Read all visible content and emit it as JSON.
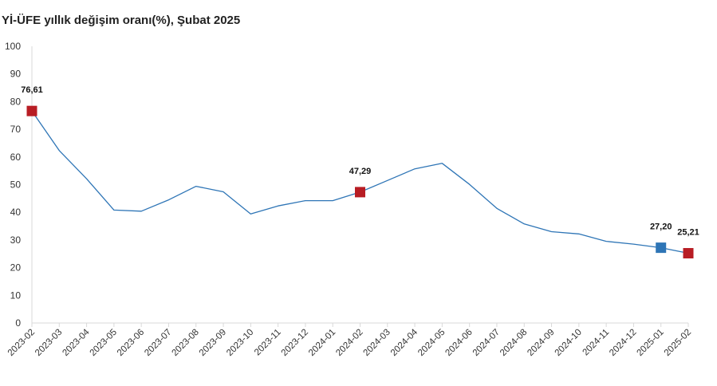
{
  "chart_data": {
    "type": "line",
    "title": "Yİ-ÜFE yıllık değişim oranı(%), Şubat 2025",
    "xlabel": "",
    "ylabel": "",
    "ylim": [
      0,
      100
    ],
    "yticks": [
      "0",
      "10",
      "20",
      "30",
      "40",
      "50",
      "60",
      "70",
      "80",
      "90",
      "100"
    ],
    "grid": false,
    "legend": "none",
    "categories": [
      "2023-02",
      "2023-03",
      "2023-04",
      "2023-05",
      "2023-06",
      "2023-07",
      "2023-08",
      "2023-09",
      "2023-10",
      "2023-11",
      "2023-12",
      "2024-01",
      "2024-02",
      "2024-03",
      "2024-04",
      "2024-05",
      "2024-06",
      "2024-07",
      "2024-08",
      "2024-09",
      "2024-10",
      "2024-11",
      "2024-12",
      "2025-01",
      "2025-02"
    ],
    "series": [
      {
        "values": [
          76.61,
          62.3,
          52.1,
          40.8,
          40.4,
          44.5,
          49.4,
          47.4,
          39.4,
          42.3,
          44.2,
          44.2,
          47.29,
          51.5,
          55.7,
          57.7,
          50.1,
          41.4,
          35.8,
          33.0,
          32.2,
          29.5,
          28.5,
          27.2,
          25.21
        ],
        "color": "#2e75b6"
      }
    ],
    "highlighted_points": [
      {
        "index": 0,
        "label": "76,61",
        "color": "#b81d24"
      },
      {
        "index": 12,
        "label": "47,29",
        "color": "#b81d24"
      },
      {
        "index": 23,
        "label": "27,20",
        "color": "#2e75b6"
      },
      {
        "index": 24,
        "label": "25,21",
        "color": "#b81d24"
      }
    ],
    "colors": {
      "line": "#2e75b6",
      "marker_red": "#b81d24",
      "marker_blue": "#2e75b6",
      "axis": "#d9d9d9"
    }
  }
}
